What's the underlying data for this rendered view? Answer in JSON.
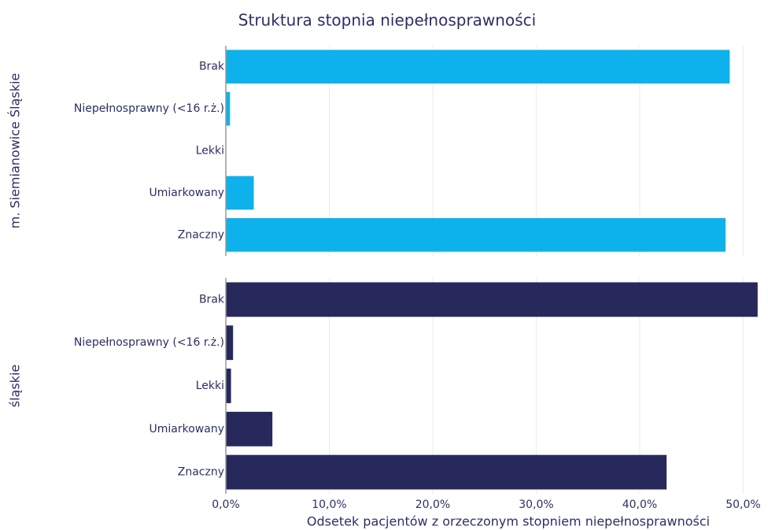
{
  "chart_data": {
    "type": "bar",
    "orientation": "horizontal",
    "title": "Struktura stopnia niepełnosprawności",
    "xlabel": "Odsetek pacjentów z orzeczonym stopniem niepełnosprawności",
    "categories": [
      "Brak",
      "Niepełnosprawny (<16 r.ż.)",
      "Lekki",
      "Umiarkowany",
      "Znaczny"
    ],
    "series": [
      {
        "name": "m. Siemianowice Śląskie",
        "color": "#0db2ec",
        "values": [
          48.7,
          0.4,
          0,
          2.7,
          48.3
        ]
      },
      {
        "name": "śląskie",
        "color": "#27295c",
        "values": [
          51.4,
          0.7,
          0.5,
          4.5,
          42.6
        ]
      }
    ],
    "xlim": [
      0,
      52.4
    ],
    "xticks": [
      {
        "value": 0,
        "label": "0,0%"
      },
      {
        "value": 10,
        "label": "10,0%"
      },
      {
        "value": 20,
        "label": "20,0%"
      },
      {
        "value": 30,
        "label": "30,0%"
      },
      {
        "value": 40,
        "label": "40,0%"
      },
      {
        "value": 50,
        "label": "50,0%"
      }
    ],
    "grid": true
  }
}
